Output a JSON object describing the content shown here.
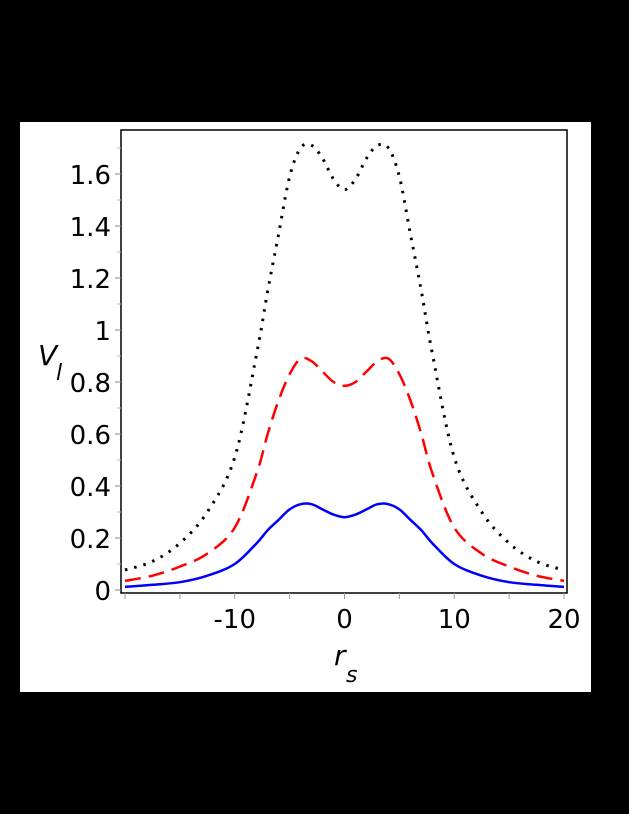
{
  "chart_data": {
    "type": "line",
    "title": "",
    "xlabel": "r",
    "xlabel_subscript": "s",
    "ylabel": "V",
    "ylabel_subscript": "l",
    "xlim": [
      -20,
      20
    ],
    "ylim": [
      0,
      1.75
    ],
    "grid": false,
    "legend": null,
    "x_ticks": [
      -10,
      0,
      10,
      20
    ],
    "x_tick_labels": [
      "-10",
      "0",
      "10",
      "20"
    ],
    "x_minor_ticks": [
      -20,
      -15,
      -10,
      -5,
      0,
      5,
      10,
      15,
      20
    ],
    "y_ticks": [
      0,
      0.2,
      0.4,
      0.6,
      0.8,
      1,
      1.2,
      1.4,
      1.6
    ],
    "y_tick_labels": [
      "0",
      "0.2",
      "0.4",
      "0.6",
      "0.8",
      "1",
      "1.2",
      "1.4",
      "1.6"
    ],
    "y_minor_ticks": [
      0.1,
      0.3,
      0.5,
      0.7,
      0.9,
      1.1,
      1.3,
      1.5,
      1.7
    ],
    "x": [
      -20,
      -17.5,
      -15,
      -12.5,
      -10,
      -8,
      -7,
      -6,
      -5,
      -4,
      -3,
      -2,
      -1,
      0,
      1,
      2,
      3,
      4,
      5,
      6,
      7,
      8,
      10,
      12.5,
      15,
      17.5,
      20
    ],
    "series": [
      {
        "name": "dotted-black",
        "color": "#000000",
        "style": "dotted",
        "values": [
          0.077,
          0.11,
          0.18,
          0.3,
          0.51,
          0.91,
          1.15,
          1.37,
          1.59,
          1.7,
          1.71,
          1.66,
          1.58,
          1.54,
          1.58,
          1.66,
          1.71,
          1.7,
          1.59,
          1.37,
          1.15,
          0.91,
          0.51,
          0.3,
          0.18,
          0.11,
          0.077
        ]
      },
      {
        "name": "dashed-red",
        "color": "#ff0000",
        "style": "dashed",
        "values": [
          0.035,
          0.055,
          0.09,
          0.14,
          0.24,
          0.45,
          0.6,
          0.73,
          0.83,
          0.89,
          0.88,
          0.84,
          0.8,
          0.785,
          0.8,
          0.84,
          0.88,
          0.89,
          0.83,
          0.73,
          0.6,
          0.45,
          0.24,
          0.14,
          0.09,
          0.055,
          0.035
        ]
      },
      {
        "name": "solid-blue",
        "color": "#0000ff",
        "style": "solid",
        "values": [
          0.012,
          0.02,
          0.03,
          0.055,
          0.1,
          0.18,
          0.23,
          0.27,
          0.31,
          0.33,
          0.33,
          0.31,
          0.29,
          0.28,
          0.29,
          0.31,
          0.33,
          0.33,
          0.31,
          0.27,
          0.23,
          0.18,
          0.1,
          0.055,
          0.03,
          0.02,
          0.012
        ]
      }
    ]
  }
}
